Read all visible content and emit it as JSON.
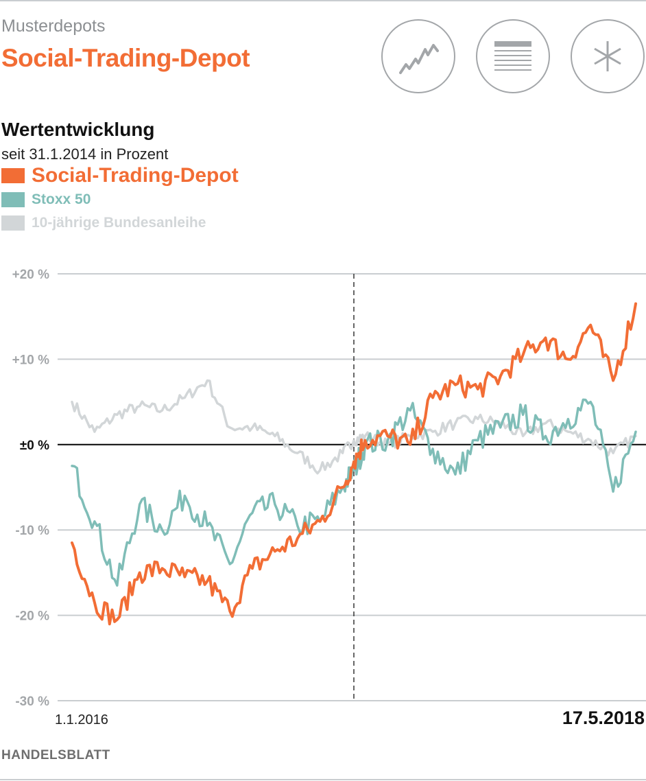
{
  "header": {
    "category": "Musterdepots",
    "title": "Social-Trading-Depot"
  },
  "icons": [
    {
      "name": "line-chart-icon"
    },
    {
      "name": "list-icon"
    },
    {
      "name": "asterisk-icon"
    }
  ],
  "colors": {
    "accent": "#f26d35",
    "stoxx": "#7fbdb7",
    "bund": "#d2d6d8",
    "grid": "#c9cdd0",
    "zero": "#111111"
  },
  "chart_data": {
    "type": "line",
    "title": "Wertentwicklung",
    "subtitle": "seit 31.1.2014 in Prozent",
    "ylabel": "Prozent",
    "ylim": [
      -30,
      20
    ],
    "yticks": [
      20,
      10,
      0,
      -10,
      -20,
      -30
    ],
    "ytick_labels": [
      "+20 %",
      "+10 %",
      "±0 %",
      "-10 %",
      "-20 %",
      "-30 %"
    ],
    "x_start_label": "1.1.2016",
    "x_end_label": "17.5.2018",
    "marker_fraction": 0.5,
    "x": [
      0,
      0.04,
      0.08,
      0.12,
      0.16,
      0.2,
      0.24,
      0.28,
      0.32,
      0.36,
      0.4,
      0.44,
      0.48,
      0.5,
      0.52,
      0.56,
      0.6,
      0.64,
      0.68,
      0.72,
      0.76,
      0.8,
      0.84,
      0.88,
      0.92,
      0.96,
      1.0
    ],
    "series": [
      {
        "name": "Social-Trading-Depot",
        "color": "#f26d35",
        "values": [
          -11.5,
          -18.5,
          -20.5,
          -15.0,
          -14.5,
          -15.5,
          -16.0,
          -19.5,
          -14.5,
          -12.5,
          -11.0,
          -9.0,
          -5.0,
          -2.0,
          0.5,
          1.0,
          0.0,
          5.5,
          7.0,
          6.5,
          8.0,
          10.5,
          12.5,
          10.0,
          14.0,
          7.5,
          16.5
        ]
      },
      {
        "name": "Stoxx 50",
        "color": "#7fbdb7",
        "values": [
          -2.5,
          -9.0,
          -16.5,
          -7.0,
          -10.0,
          -6.0,
          -9.5,
          -14.0,
          -8.0,
          -7.0,
          -9.5,
          -9.0,
          -5.0,
          -3.0,
          0.0,
          0.5,
          4.0,
          -0.5,
          -3.5,
          0.5,
          2.0,
          3.5,
          1.0,
          3.0,
          5.0,
          -5.5,
          1.5
        ]
      },
      {
        "name": "10-jährige Bundesanleihe",
        "color": "#d2d6d8",
        "values": [
          5.0,
          1.5,
          3.5,
          4.5,
          4.0,
          5.5,
          7.5,
          2.0,
          2.0,
          1.0,
          -1.0,
          -3.0,
          -1.0,
          0.5,
          1.0,
          0.0,
          1.0,
          1.5,
          2.5,
          3.0,
          2.5,
          1.0,
          2.5,
          1.5,
          0.5,
          -1.0,
          1.0
        ]
      }
    ]
  },
  "legend": [
    {
      "label": "Social-Trading-Depot",
      "color": "#f26d35"
    },
    {
      "label": "Stoxx 50",
      "color": "#7fbdb7"
    },
    {
      "label": "10-jährige Bundesanleihe",
      "color": "#d2d6d8"
    }
  ],
  "source": "HANDELSBLATT"
}
